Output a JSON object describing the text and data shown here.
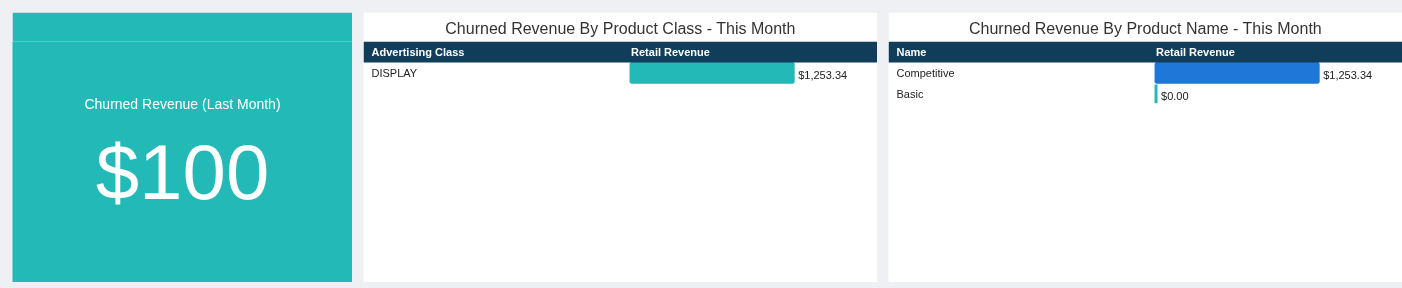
{
  "chart_data": [
    {
      "type": "other",
      "title": "Churned Revenue (Last Month)",
      "annotations": [
        "$100"
      ]
    },
    {
      "type": "bar",
      "orientation": "horizontal",
      "title": "Churned Revenue By Product Class - This Month",
      "ylabel": "Advertising Class",
      "xlabel": "Retail Revenue",
      "categories": [
        "DISPLAY"
      ],
      "values": [
        1253.34
      ],
      "colors": [
        "#22b9b7"
      ],
      "value_labels": [
        "$1,253.34"
      ]
    },
    {
      "type": "bar",
      "orientation": "horizontal",
      "title": "Churned Revenue By Product Name - This Month",
      "ylabel": "Name",
      "xlabel": "Retail Revenue",
      "categories": [
        "Competitive",
        "Basic"
      ],
      "values": [
        1253.34,
        0
      ],
      "colors": [
        "#1f78d8",
        "#22b9b7"
      ],
      "value_labels": [
        "$1,253.34",
        "$0.00"
      ]
    }
  ]
}
